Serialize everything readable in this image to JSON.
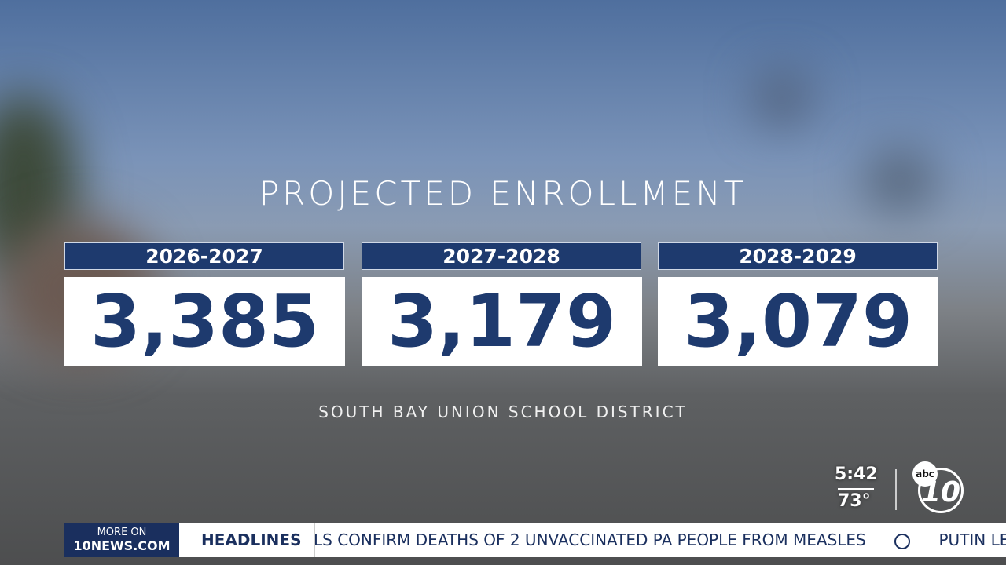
{
  "graphic": {
    "title": "PROJECTED ENROLLMENT",
    "cards": [
      {
        "period": "2026-2027",
        "value": "3,385"
      },
      {
        "period": "2027-2028",
        "value": "3,179"
      },
      {
        "period": "2028-2029",
        "value": "3,079"
      }
    ],
    "source": "SOUTH BAY UNION SCHOOL DISTRICT"
  },
  "bug": {
    "time": "5:42",
    "temperature": "73°",
    "logo_network": "abc",
    "logo_channel": "10"
  },
  "ticker": {
    "promo_top": "MORE ON",
    "promo_bottom": "10NEWS.COM",
    "label": "HEADLINES",
    "items": [
      "LS CONFIRM DEATHS OF 2 UNVACCINATED PA PEOPLE FROM MEASLES",
      "PUTIN LET"
    ]
  }
}
